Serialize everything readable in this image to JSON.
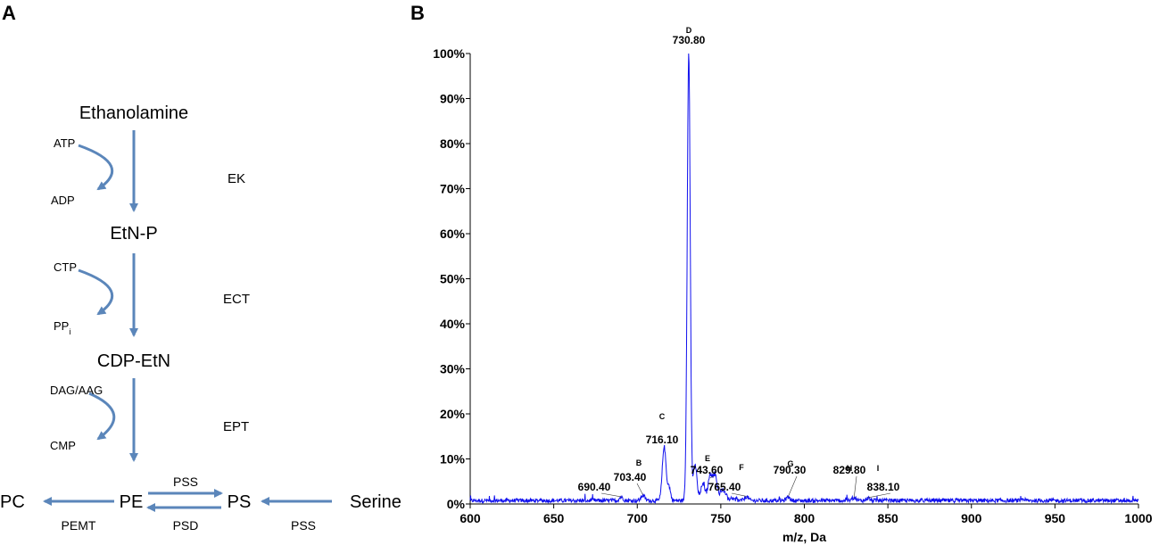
{
  "panels": {
    "a": "A",
    "b": "B"
  },
  "pathway": {
    "arrow_color": "#5b86ba",
    "molecules": {
      "ethanolamine": "Ethanolamine",
      "etnp": "EtN-P",
      "cdpetn": "CDP-EtN",
      "pc": "PC",
      "pe": "PE",
      "ps": "PS",
      "serine": "Serine"
    },
    "steps": [
      {
        "in": "ATP",
        "out": "ADP",
        "out_sub": "",
        "enzyme": "EK"
      },
      {
        "in": "CTP",
        "out": "PP",
        "out_sub": "i",
        "enzyme": "ECT"
      },
      {
        "in": "DAG/AAG",
        "out": "CMP",
        "out_sub": "",
        "enzyme": "EPT"
      }
    ],
    "bottom_enzymes": {
      "pss_top": "PSS",
      "psd": "PSD",
      "pemt": "PEMT",
      "pss_serine": "PSS"
    }
  },
  "chart_data": {
    "type": "line",
    "title": "",
    "xlabel": "m/z, Da",
    "ylabel": "",
    "xlim": [
      600,
      1000
    ],
    "ylim": [
      0,
      100
    ],
    "x_ticks": [
      "600",
      "650",
      "700",
      "750",
      "800",
      "850",
      "900",
      "950",
      "1000"
    ],
    "y_ticks": [
      "0%",
      "10%",
      "20%",
      "30%",
      "40%",
      "50%",
      "60%",
      "70%",
      "80%",
      "90%",
      "100%"
    ],
    "line_color": "#1010ee",
    "grid": false,
    "peaks": [
      {
        "label": "",
        "mz": "690.40",
        "x": 690.4,
        "y": 0.8
      },
      {
        "label": "B",
        "mz": "703.40",
        "x": 703.4,
        "y": 1.2
      },
      {
        "label": "C",
        "mz": "716.10",
        "x": 716.1,
        "y": 12.0
      },
      {
        "label": "D",
        "mz": "730.80",
        "x": 730.8,
        "y": 100.0
      },
      {
        "label": "E",
        "mz": "743.60",
        "x": 743.6,
        "y": 5.0
      },
      {
        "label": "F",
        "mz": "765.40",
        "x": 765.4,
        "y": 0.9
      },
      {
        "label": "G",
        "mz": "790.30",
        "x": 790.3,
        "y": 0.8
      },
      {
        "label": "H",
        "mz": "829.80",
        "x": 829.8,
        "y": 0.7
      },
      {
        "label": "I",
        "mz": "838.10",
        "x": 838.1,
        "y": 0.6
      }
    ]
  }
}
